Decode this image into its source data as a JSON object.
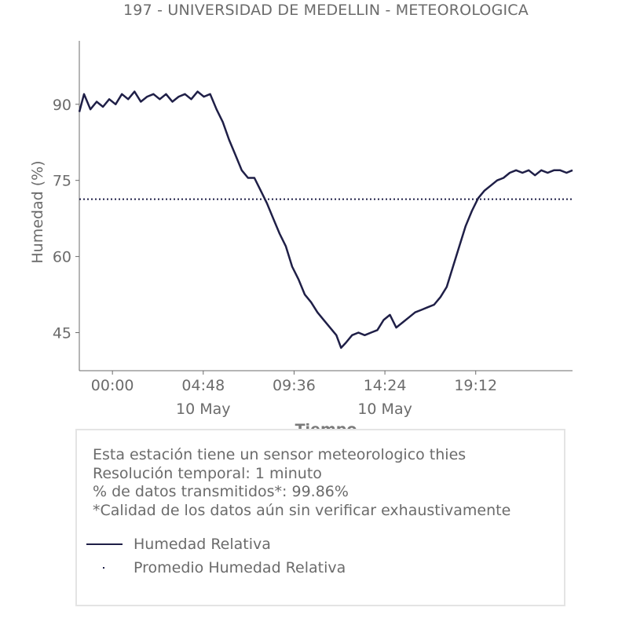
{
  "title": "197 - UNIVERSIDAD DE MEDELLIN - METEOROLOGICA",
  "info": {
    "lines": [
      "Esta estación tiene un sensor meteorologico thies",
      "Resolución temporal: 1 minuto",
      "% de datos transmitidos*: 99.86%",
      "*Calidad de los datos aún sin verificar exhaustivamente"
    ]
  },
  "legend": [
    {
      "label": "Humedad Relativa",
      "style": "line"
    },
    {
      "label": "Promedio Humedad Relativa",
      "style": "dotted"
    }
  ],
  "colors": {
    "series": "#1f1f47",
    "text": "#6b6b6b",
    "axis": "#6b6b6b"
  },
  "chart_data": {
    "type": "line",
    "title": "197 - UNIVERSIDAD DE MEDELLIN - METEOROLOGICA",
    "xlabel": "Tiempo",
    "ylabel": "Humedad (%)",
    "xlim": [
      "2019-05-09 22:15",
      "2019-05-11 00:19"
    ],
    "ylim": [
      37.5,
      102.5
    ],
    "yticks": [
      45,
      60,
      75,
      90
    ],
    "xticks": [
      {
        "x": "2019-05-10 00:00",
        "label": "00:00",
        "sublabel": ""
      },
      {
        "x": "2019-05-10 04:48",
        "label": "04:48",
        "sublabel": "10 May"
      },
      {
        "x": "2019-05-10 09:36",
        "label": "09:36",
        "sublabel": ""
      },
      {
        "x": "2019-05-10 14:24",
        "label": "14:24",
        "sublabel": "10 May"
      },
      {
        "x": "2019-05-10 19:12",
        "label": "19:12",
        "sublabel": ""
      }
    ],
    "grid": false,
    "series": [
      {
        "name": "Humedad Relativa",
        "style": "solid",
        "x": [
          "2019-05-09 22:15",
          "2019-05-09 22:30",
          "2019-05-09 22:50",
          "2019-05-09 23:10",
          "2019-05-09 23:30",
          "2019-05-09 23:50",
          "2019-05-10 00:10",
          "2019-05-10 00:30",
          "2019-05-10 00:50",
          "2019-05-10 01:10",
          "2019-05-10 01:30",
          "2019-05-10 01:50",
          "2019-05-10 02:10",
          "2019-05-10 02:30",
          "2019-05-10 02:50",
          "2019-05-10 03:10",
          "2019-05-10 03:30",
          "2019-05-10 03:50",
          "2019-05-10 04:10",
          "2019-05-10 04:30",
          "2019-05-10 04:50",
          "2019-05-10 05:10",
          "2019-05-10 05:30",
          "2019-05-10 05:50",
          "2019-05-10 06:10",
          "2019-05-10 06:30",
          "2019-05-10 06:50",
          "2019-05-10 07:10",
          "2019-05-10 07:30",
          "2019-05-10 07:50",
          "2019-05-10 08:10",
          "2019-05-10 08:30",
          "2019-05-10 08:50",
          "2019-05-10 09:10",
          "2019-05-10 09:30",
          "2019-05-10 09:50",
          "2019-05-10 10:10",
          "2019-05-10 10:30",
          "2019-05-10 10:50",
          "2019-05-10 11:10",
          "2019-05-10 11:30",
          "2019-05-10 11:50",
          "2019-05-10 12:05",
          "2019-05-10 12:20",
          "2019-05-10 12:40",
          "2019-05-10 13:00",
          "2019-05-10 13:20",
          "2019-05-10 13:40",
          "2019-05-10 14:00",
          "2019-05-10 14:20",
          "2019-05-10 14:40",
          "2019-05-10 15:00",
          "2019-05-10 15:20",
          "2019-05-10 15:40",
          "2019-05-10 16:00",
          "2019-05-10 16:20",
          "2019-05-10 16:40",
          "2019-05-10 17:00",
          "2019-05-10 17:20",
          "2019-05-10 17:40",
          "2019-05-10 18:00",
          "2019-05-10 18:20",
          "2019-05-10 18:40",
          "2019-05-10 19:00",
          "2019-05-10 19:20",
          "2019-05-10 19:40",
          "2019-05-10 20:00",
          "2019-05-10 20:20",
          "2019-05-10 20:40",
          "2019-05-10 21:00",
          "2019-05-10 21:20",
          "2019-05-10 21:40",
          "2019-05-10 22:00",
          "2019-05-10 22:20",
          "2019-05-10 22:40",
          "2019-05-10 23:00",
          "2019-05-10 23:20",
          "2019-05-10 23:40",
          "2019-05-11 00:00",
          "2019-05-11 00:19"
        ],
        "values": [
          88.5,
          92,
          89,
          90.5,
          89.5,
          91,
          90,
          92,
          91,
          92.5,
          90.5,
          91.5,
          92,
          91,
          92,
          90.5,
          91.5,
          92,
          91,
          92.5,
          91.5,
          92,
          89,
          86.5,
          83,
          80,
          77,
          75.5,
          75.5,
          73,
          70.5,
          67.5,
          64.5,
          62,
          58,
          55.5,
          52.5,
          51,
          49,
          47.5,
          46,
          44.5,
          42,
          43,
          44.5,
          45,
          44.5,
          45,
          45.5,
          47.5,
          48.5,
          46,
          47,
          48,
          49,
          49.5,
          50,
          50.5,
          52,
          54,
          58,
          62,
          66,
          69,
          71.5,
          73,
          74,
          75,
          75.5,
          76.5,
          77,
          76.5,
          77,
          76,
          77,
          76.5,
          77,
          77,
          76.5,
          77
        ]
      },
      {
        "name": "Promedio Humedad Relativa",
        "style": "dotted",
        "x": [
          "2019-05-09 22:15",
          "2019-05-11 00:19"
        ],
        "values": [
          71.3,
          71.3
        ]
      }
    ]
  }
}
